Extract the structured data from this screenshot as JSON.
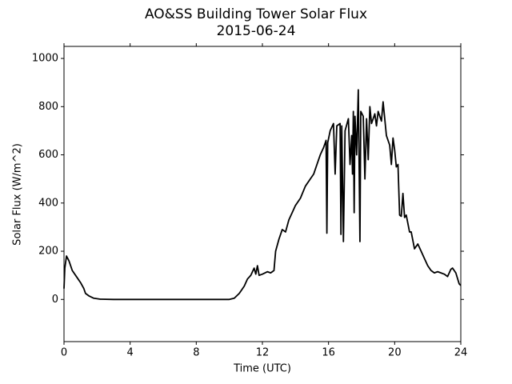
{
  "chart_data": {
    "type": "line",
    "title": "AO&SS Building Tower Solar Flux",
    "subtitle": "2015-06-24",
    "x_label": "Time (UTC)",
    "y_label": "Solar Flux (W/m^2)",
    "color": "#000000",
    "xlim": [
      0,
      24
    ],
    "xticks": [
      0,
      4,
      8,
      12,
      16,
      20,
      24
    ],
    "ylim": [
      -175,
      1050
    ],
    "yticks": [
      0,
      200,
      400,
      600,
      800,
      1000
    ],
    "x": [
      0,
      0.05,
      0.15,
      0.3,
      0.5,
      0.8,
      1.0,
      1.2,
      1.3,
      1.5,
      1.8,
      2.2,
      3,
      10,
      10.3,
      10.6,
      10.9,
      11.1,
      11.3,
      11.5,
      11.6,
      11.7,
      11.8,
      12.0,
      12.3,
      12.5,
      12.7,
      12.8,
      13.0,
      13.2,
      13.4,
      13.6,
      13.8,
      14.0,
      14.3,
      14.6,
      14.9,
      15.1,
      15.3,
      15.5,
      15.7,
      15.85,
      15.9,
      15.95,
      16.1,
      16.3,
      16.4,
      16.5,
      16.7,
      16.75,
      16.8,
      16.9,
      17.0,
      17.2,
      17.3,
      17.4,
      17.45,
      17.5,
      17.55,
      17.6,
      17.7,
      17.8,
      17.9,
      17.95,
      18.1,
      18.2,
      18.3,
      18.4,
      18.5,
      18.6,
      18.8,
      18.9,
      19.0,
      19.2,
      19.3,
      19.5,
      19.7,
      19.8,
      19.9,
      20.0,
      20.1,
      20.2,
      20.3,
      20.4,
      20.5,
      20.6,
      20.7,
      20.9,
      21.0,
      21.2,
      21.4,
      21.6,
      21.8,
      22.0,
      22.2,
      22.4,
      22.6,
      22.8,
      23.0,
      23.2,
      23.4,
      23.5,
      23.7,
      23.9,
      24.0
    ],
    "values": [
      45,
      130,
      180,
      160,
      120,
      90,
      70,
      45,
      25,
      15,
      5,
      1,
      0,
      0,
      5,
      25,
      55,
      85,
      100,
      130,
      105,
      140,
      100,
      105,
      115,
      110,
      120,
      200,
      250,
      290,
      280,
      330,
      360,
      390,
      420,
      470,
      500,
      520,
      560,
      600,
      630,
      660,
      275,
      650,
      700,
      730,
      520,
      720,
      730,
      270,
      720,
      240,
      700,
      750,
      560,
      680,
      520,
      780,
      360,
      760,
      600,
      870,
      240,
      780,
      760,
      500,
      750,
      580,
      800,
      730,
      770,
      720,
      780,
      740,
      820,
      680,
      640,
      560,
      670,
      620,
      550,
      560,
      350,
      345,
      440,
      340,
      350,
      280,
      280,
      210,
      230,
      200,
      170,
      140,
      120,
      110,
      115,
      110,
      105,
      95,
      125,
      130,
      110,
      65,
      58
    ]
  }
}
